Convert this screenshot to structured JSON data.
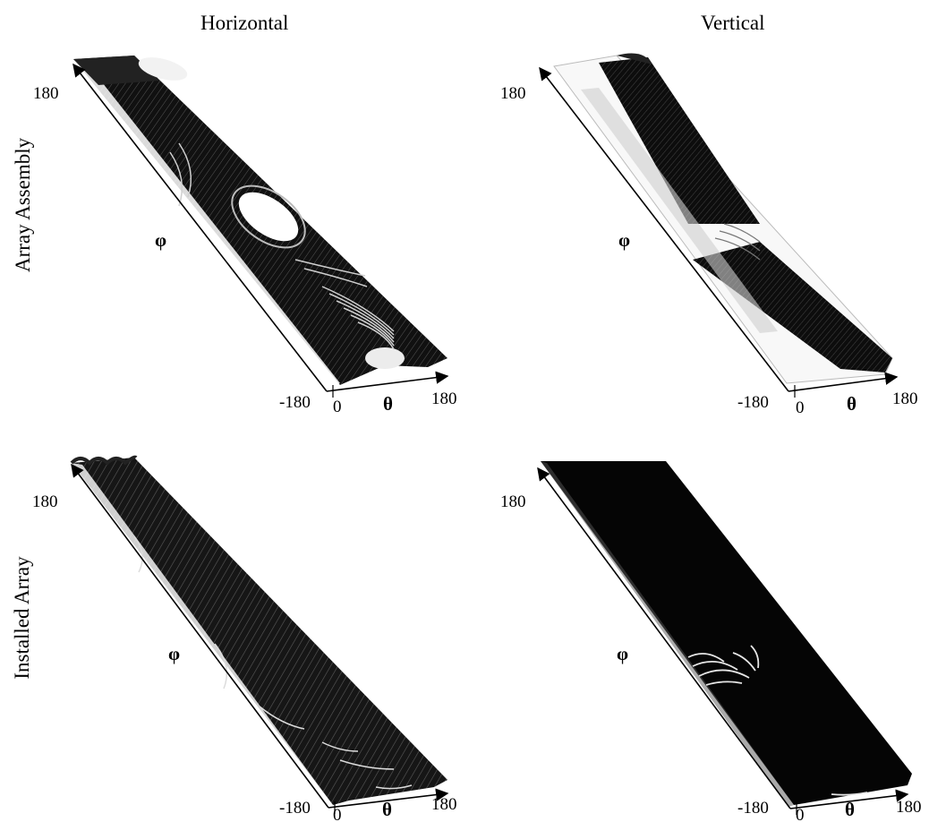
{
  "columns": {
    "left": "Horizontal",
    "right": "Vertical"
  },
  "rows": {
    "top": "Array Assembly",
    "bottom": "Installed Array"
  },
  "panels": [
    {
      "id": "assembly-horizontal",
      "phi_label": "φ",
      "theta_label": "θ",
      "phi_max": "180",
      "phi_min": "-180",
      "theta_min": "0",
      "theta_max": "180"
    },
    {
      "id": "assembly-vertical",
      "phi_label": "φ",
      "theta_label": "θ",
      "phi_max": "180",
      "phi_min": "-180",
      "theta_min": "0",
      "theta_max": "180"
    },
    {
      "id": "installed-horizontal",
      "phi_label": "φ",
      "theta_label": "θ",
      "phi_max": "180",
      "phi_min": "-180",
      "theta_min": "0",
      "theta_max": "180"
    },
    {
      "id": "installed-vertical",
      "phi_label": "φ",
      "theta_label": "θ",
      "phi_max": "180",
      "phi_min": "-180",
      "theta_min": "0",
      "theta_max": "180"
    }
  ]
}
